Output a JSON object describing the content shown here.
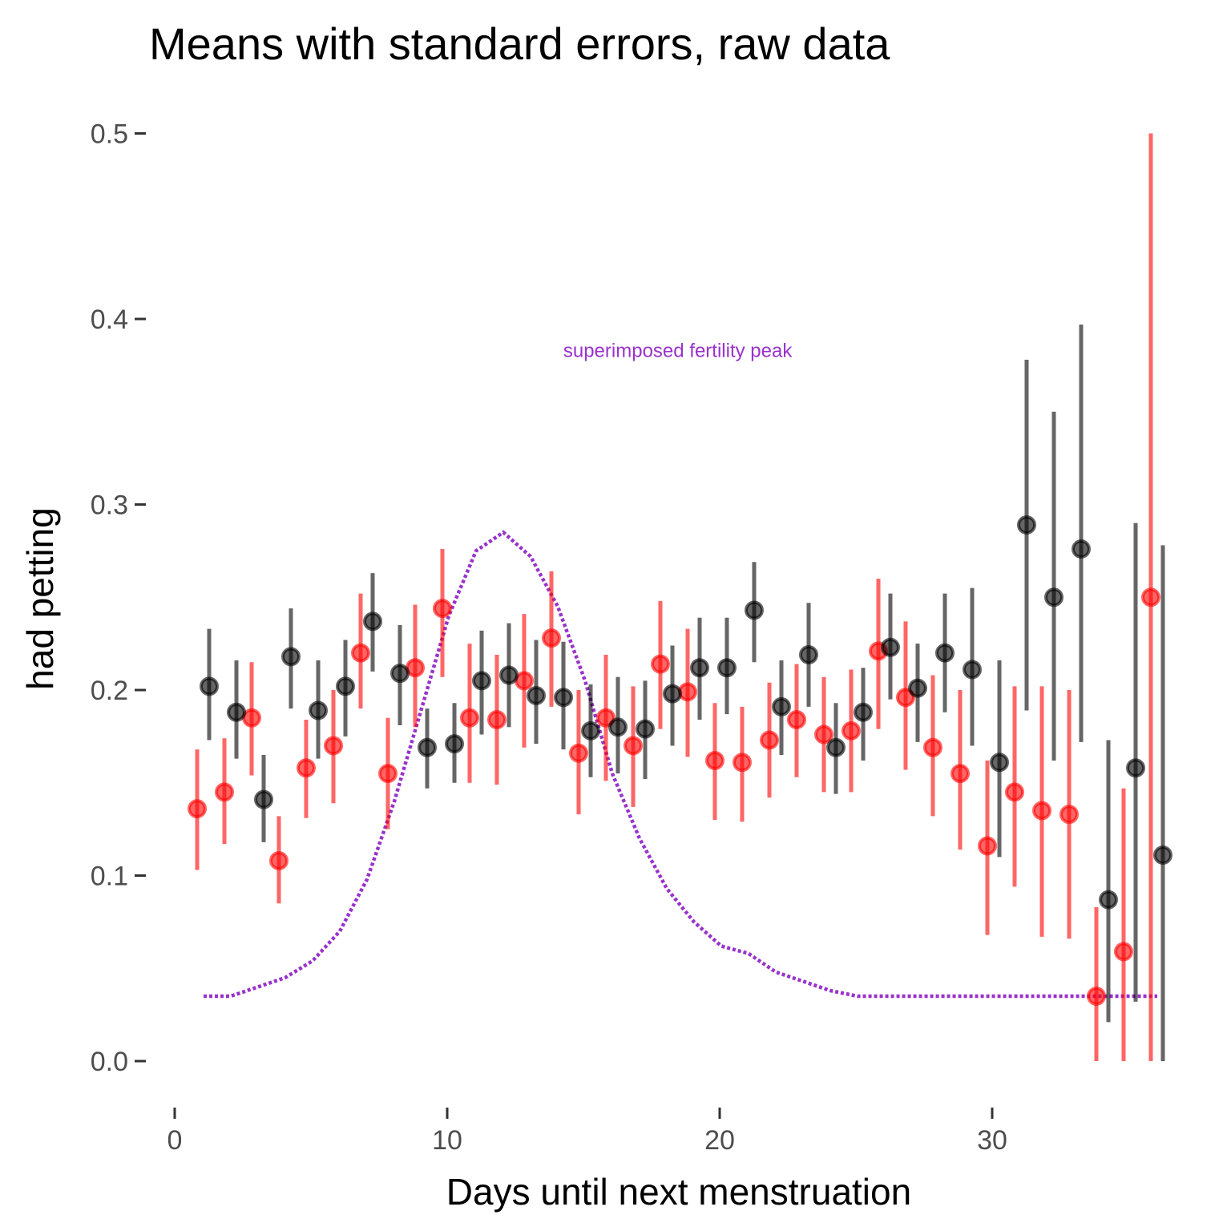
{
  "chart_data": {
    "type": "scatter",
    "title": "Means with standard errors, raw data",
    "xlabel": "Days until next menstruation",
    "ylabel": "had petting",
    "xlim": [
      0,
      36.6
    ],
    "ylim": [
      0,
      0.5
    ],
    "x_ticks": [
      0,
      10,
      20,
      30
    ],
    "x_tick_labels": [
      "0",
      "10",
      "20",
      "30"
    ],
    "y_ticks": [
      0,
      0.1,
      0.2,
      0.3,
      0.4,
      0.5
    ],
    "y_tick_labels": [
      "0.0",
      "0.1",
      "0.2",
      "0.3",
      "0.4",
      "0.5"
    ],
    "grid": false,
    "legend": "none",
    "colors": {
      "series_red": "#ff0000",
      "series_black": "#000000",
      "fertility": "#9932cc"
    },
    "annotation": {
      "text": "superimposed fertility peak",
      "x": 18.4,
      "y": 0.383
    },
    "series": [
      {
        "color": "red",
        "points": [
          {
            "x": 1,
            "y": 0.136,
            "lo": 0.103,
            "hi": 0.168
          },
          {
            "x": 2,
            "y": 0.145,
            "lo": 0.117,
            "hi": 0.174
          },
          {
            "x": 3,
            "y": 0.185,
            "lo": 0.154,
            "hi": 0.215
          },
          {
            "x": 4,
            "y": 0.108,
            "lo": 0.085,
            "hi": 0.132
          },
          {
            "x": 5,
            "y": 0.158,
            "lo": 0.131,
            "hi": 0.184
          },
          {
            "x": 6,
            "y": 0.17,
            "lo": 0.139,
            "hi": 0.2
          },
          {
            "x": 7,
            "y": 0.22,
            "lo": 0.19,
            "hi": 0.252
          },
          {
            "x": 8,
            "y": 0.155,
            "lo": 0.125,
            "hi": 0.185
          },
          {
            "x": 9,
            "y": 0.212,
            "lo": 0.18,
            "hi": 0.246
          },
          {
            "x": 10,
            "y": 0.244,
            "lo": 0.207,
            "hi": 0.276
          },
          {
            "x": 11,
            "y": 0.185,
            "lo": 0.15,
            "hi": 0.225
          },
          {
            "x": 12,
            "y": 0.184,
            "lo": 0.149,
            "hi": 0.219
          },
          {
            "x": 13,
            "y": 0.205,
            "lo": 0.169,
            "hi": 0.241
          },
          {
            "x": 14,
            "y": 0.228,
            "lo": 0.191,
            "hi": 0.264
          },
          {
            "x": 15,
            "y": 0.166,
            "lo": 0.133,
            "hi": 0.2
          },
          {
            "x": 16,
            "y": 0.185,
            "lo": 0.151,
            "hi": 0.219
          },
          {
            "x": 17,
            "y": 0.17,
            "lo": 0.137,
            "hi": 0.202
          },
          {
            "x": 18,
            "y": 0.214,
            "lo": 0.179,
            "hi": 0.248
          },
          {
            "x": 19,
            "y": 0.199,
            "lo": 0.164,
            "hi": 0.233
          },
          {
            "x": 20,
            "y": 0.162,
            "lo": 0.13,
            "hi": 0.193
          },
          {
            "x": 21,
            "y": 0.161,
            "lo": 0.129,
            "hi": 0.191
          },
          {
            "x": 22,
            "y": 0.173,
            "lo": 0.142,
            "hi": 0.204
          },
          {
            "x": 23,
            "y": 0.184,
            "lo": 0.153,
            "hi": 0.214
          },
          {
            "x": 24,
            "y": 0.176,
            "lo": 0.145,
            "hi": 0.207
          },
          {
            "x": 25,
            "y": 0.178,
            "lo": 0.145,
            "hi": 0.211
          },
          {
            "x": 26,
            "y": 0.221,
            "lo": 0.179,
            "hi": 0.26
          },
          {
            "x": 27,
            "y": 0.196,
            "lo": 0.157,
            "hi": 0.237
          },
          {
            "x": 28,
            "y": 0.169,
            "lo": 0.132,
            "hi": 0.208
          },
          {
            "x": 29,
            "y": 0.155,
            "lo": 0.114,
            "hi": 0.2
          },
          {
            "x": 30,
            "y": 0.116,
            "lo": 0.068,
            "hi": 0.162
          },
          {
            "x": 31,
            "y": 0.145,
            "lo": 0.094,
            "hi": 0.202
          },
          {
            "x": 32,
            "y": 0.135,
            "lo": 0.067,
            "hi": 0.202
          },
          {
            "x": 33,
            "y": 0.133,
            "lo": 0.066,
            "hi": 0.2
          },
          {
            "x": 34,
            "y": 0.035,
            "lo": 0.0,
            "hi": 0.083
          },
          {
            "x": 35,
            "y": 0.059,
            "lo": 0.0,
            "hi": 0.147
          },
          {
            "x": 36,
            "y": 0.25,
            "lo": 0.0,
            "hi": 0.5
          }
        ]
      },
      {
        "color": "black",
        "points": [
          {
            "x": 1,
            "y": 0.202,
            "lo": 0.173,
            "hi": 0.233
          },
          {
            "x": 2,
            "y": 0.188,
            "lo": 0.163,
            "hi": 0.216
          },
          {
            "x": 3,
            "y": 0.141,
            "lo": 0.118,
            "hi": 0.165
          },
          {
            "x": 4,
            "y": 0.218,
            "lo": 0.19,
            "hi": 0.244
          },
          {
            "x": 5,
            "y": 0.189,
            "lo": 0.163,
            "hi": 0.216
          },
          {
            "x": 6,
            "y": 0.202,
            "lo": 0.175,
            "hi": 0.227
          },
          {
            "x": 7,
            "y": 0.237,
            "lo": 0.21,
            "hi": 0.263
          },
          {
            "x": 8,
            "y": 0.209,
            "lo": 0.181,
            "hi": 0.235
          },
          {
            "x": 9,
            "y": 0.169,
            "lo": 0.147,
            "hi": 0.19
          },
          {
            "x": 10,
            "y": 0.171,
            "lo": 0.15,
            "hi": 0.193
          },
          {
            "x": 11,
            "y": 0.205,
            "lo": 0.176,
            "hi": 0.232
          },
          {
            "x": 12,
            "y": 0.208,
            "lo": 0.18,
            "hi": 0.236
          },
          {
            "x": 13,
            "y": 0.197,
            "lo": 0.171,
            "hi": 0.227
          },
          {
            "x": 14,
            "y": 0.196,
            "lo": 0.168,
            "hi": 0.226
          },
          {
            "x": 15,
            "y": 0.178,
            "lo": 0.153,
            "hi": 0.203
          },
          {
            "x": 16,
            "y": 0.18,
            "lo": 0.155,
            "hi": 0.207
          },
          {
            "x": 17,
            "y": 0.179,
            "lo": 0.152,
            "hi": 0.205
          },
          {
            "x": 18,
            "y": 0.198,
            "lo": 0.17,
            "hi": 0.224
          },
          {
            "x": 19,
            "y": 0.212,
            "lo": 0.184,
            "hi": 0.239
          },
          {
            "x": 20,
            "y": 0.212,
            "lo": 0.187,
            "hi": 0.239
          },
          {
            "x": 21,
            "y": 0.243,
            "lo": 0.215,
            "hi": 0.269
          },
          {
            "x": 22,
            "y": 0.191,
            "lo": 0.165,
            "hi": 0.216
          },
          {
            "x": 23,
            "y": 0.219,
            "lo": 0.191,
            "hi": 0.247
          },
          {
            "x": 24,
            "y": 0.169,
            "lo": 0.144,
            "hi": 0.193
          },
          {
            "x": 25,
            "y": 0.188,
            "lo": 0.162,
            "hi": 0.212
          },
          {
            "x": 26,
            "y": 0.223,
            "lo": 0.195,
            "hi": 0.252
          },
          {
            "x": 27,
            "y": 0.201,
            "lo": 0.172,
            "hi": 0.225
          },
          {
            "x": 28,
            "y": 0.22,
            "lo": 0.188,
            "hi": 0.252
          },
          {
            "x": 29,
            "y": 0.211,
            "lo": 0.17,
            "hi": 0.255
          },
          {
            "x": 30,
            "y": 0.161,
            "lo": 0.11,
            "hi": 0.216
          },
          {
            "x": 31,
            "y": 0.289,
            "lo": 0.189,
            "hi": 0.378
          },
          {
            "x": 32,
            "y": 0.25,
            "lo": 0.162,
            "hi": 0.35
          },
          {
            "x": 33,
            "y": 0.276,
            "lo": 0.172,
            "hi": 0.397
          },
          {
            "x": 34,
            "y": 0.087,
            "lo": 0.021,
            "hi": 0.173
          },
          {
            "x": 35,
            "y": 0.158,
            "lo": 0.032,
            "hi": 0.29
          },
          {
            "x": 36,
            "y": 0.111,
            "lo": 0.0,
            "hi": 0.278
          }
        ]
      }
    ],
    "fertility_curve": {
      "x": [
        1,
        2,
        3,
        4,
        5,
        6,
        7,
        8,
        9,
        10,
        11,
        12,
        13,
        14,
        15,
        16,
        17,
        18,
        19,
        20,
        21,
        22,
        23,
        24,
        25,
        26,
        27,
        28,
        29,
        30,
        31,
        32,
        33,
        34,
        35,
        36
      ],
      "y": [
        0.035,
        0.035,
        0.04,
        0.045,
        0.054,
        0.07,
        0.098,
        0.14,
        0.19,
        0.24,
        0.275,
        0.285,
        0.272,
        0.245,
        0.205,
        0.155,
        0.12,
        0.093,
        0.075,
        0.062,
        0.058,
        0.048,
        0.043,
        0.038,
        0.035,
        0.035,
        0.035,
        0.035,
        0.035,
        0.035,
        0.035,
        0.035,
        0.035,
        0.035,
        0.035,
        0.035
      ]
    }
  }
}
